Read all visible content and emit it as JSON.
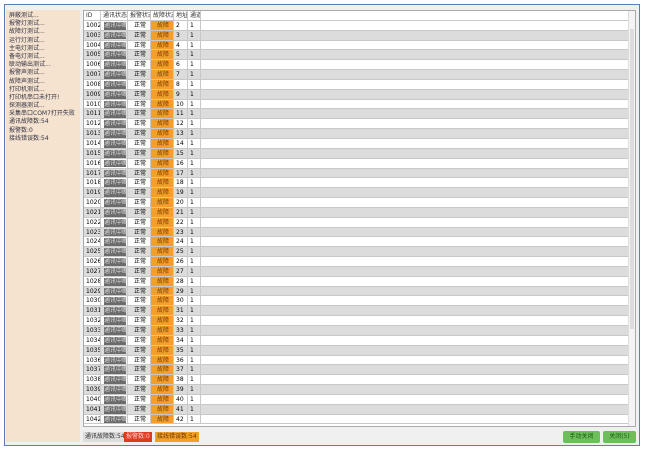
{
  "sidebar": {
    "items": [
      "屏蔽测试...",
      "报警灯测试...",
      "故障灯测试...",
      "运行灯测试...",
      "主电灯测试...",
      "备电灯测试...",
      "联动输出测试...",
      "报警声测试...",
      "故障声测试...",
      "打印机测试...",
      "打印机串口未打开!",
      "探测器测试...",
      "采集串口COM7打开失败",
      "通讯故障数:54",
      "报警数:0",
      "接线错误数:54"
    ]
  },
  "table": {
    "headers": [
      "ID",
      "通讯状态",
      "报警状态",
      "故障状态",
      "地址",
      "通道"
    ],
    "comm_status": "通讯中断",
    "alarm_status": "正常",
    "fault_status": "故障",
    "channel": "1",
    "first_id": 1002,
    "first_address": 2,
    "row_count": 41
  },
  "footer": {
    "comm_fault": "通讯故障数:54",
    "alarm": "报警数:0",
    "wiring": "接线错误数:54",
    "manual_close": "手动关闭",
    "close": "关闭(5)"
  },
  "colors": {
    "fault": "#f3a02a",
    "comm": "#6b6b6b",
    "alarm": "#e03a22",
    "button": "#6cbf5a",
    "sidebar": "#f5e3cf"
  }
}
